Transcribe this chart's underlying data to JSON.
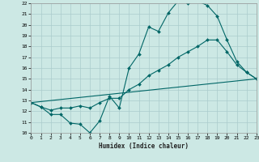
{
  "bg_color": "#cce8e4",
  "grid_color": "#aacccc",
  "line_color": "#006666",
  "xlabel": "Humidex (Indice chaleur)",
  "xlim": [
    0,
    23
  ],
  "ylim": [
    10,
    22
  ],
  "xtick_labels": [
    "0",
    "1",
    "2",
    "3",
    "4",
    "5",
    "6",
    "7",
    "8",
    "9",
    "10",
    "11",
    "12",
    "13",
    "14",
    "15",
    "16",
    "17",
    "18",
    "19",
    "20",
    "21",
    "22",
    "23"
  ],
  "xticks": [
    0,
    1,
    2,
    3,
    4,
    5,
    6,
    7,
    8,
    9,
    10,
    11,
    12,
    13,
    14,
    15,
    16,
    17,
    18,
    19,
    20,
    21,
    22,
    23
  ],
  "yticks": [
    10,
    11,
    12,
    13,
    14,
    15,
    16,
    17,
    18,
    19,
    20,
    21,
    22
  ],
  "line1_x": [
    0,
    1,
    2,
    3,
    4,
    5,
    6,
    7,
    8,
    9,
    10,
    11,
    12,
    13,
    14,
    15,
    16,
    17,
    18,
    19,
    20,
    21,
    22,
    23
  ],
  "line1_y": [
    12.8,
    12.4,
    11.7,
    11.7,
    10.9,
    10.8,
    10.0,
    11.1,
    13.4,
    12.3,
    16.0,
    17.3,
    19.8,
    19.4,
    21.1,
    22.2,
    22.0,
    22.2,
    21.8,
    20.8,
    18.6,
    16.6,
    15.6,
    15.0
  ],
  "line2_x": [
    0,
    1,
    2,
    3,
    4,
    5,
    6,
    7,
    8,
    9,
    10,
    11,
    12,
    13,
    14,
    15,
    16,
    17,
    18,
    19,
    20,
    21,
    22,
    23
  ],
  "line2_y": [
    12.8,
    12.4,
    12.1,
    12.3,
    12.3,
    12.5,
    12.3,
    12.8,
    13.2,
    13.2,
    14.0,
    14.5,
    15.3,
    15.8,
    16.3,
    17.0,
    17.5,
    18.0,
    18.6,
    18.6,
    17.5,
    16.3,
    15.6,
    15.0
  ],
  "line3_x": [
    0,
    23
  ],
  "line3_y": [
    12.8,
    15.0
  ]
}
